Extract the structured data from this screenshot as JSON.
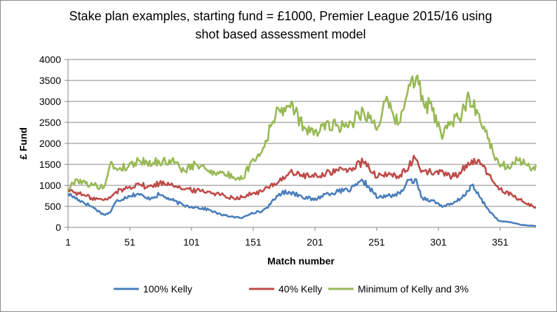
{
  "chart_data": {
    "type": "line",
    "title_line1": "Stake plan examples, starting fund = £1000, Premier League 2015/16 using",
    "title_line2": "shot based assessment model",
    "xlabel": "Match number",
    "ylabel": "£ Fund",
    "xlim": [
      1,
      380
    ],
    "ylim": [
      0,
      4000
    ],
    "x_ticks": [
      1,
      51,
      101,
      151,
      201,
      251,
      301,
      351
    ],
    "y_ticks": [
      0,
      500,
      1000,
      1500,
      2000,
      2500,
      3000,
      3500,
      4000
    ],
    "grid": "horizontal",
    "legend_position": "bottom",
    "series": [
      {
        "name": "100% Kelly",
        "color": "#4a7ebb",
        "points": [
          [
            1,
            800
          ],
          [
            10,
            650
          ],
          [
            20,
            500
          ],
          [
            30,
            300
          ],
          [
            35,
            350
          ],
          [
            40,
            620
          ],
          [
            50,
            750
          ],
          [
            58,
            800
          ],
          [
            65,
            680
          ],
          [
            75,
            780
          ],
          [
            85,
            650
          ],
          [
            95,
            520
          ],
          [
            105,
            480
          ],
          [
            115,
            420
          ],
          [
            125,
            300
          ],
          [
            135,
            250
          ],
          [
            142,
            220
          ],
          [
            150,
            350
          ],
          [
            158,
            380
          ],
          [
            165,
            550
          ],
          [
            172,
            800
          ],
          [
            180,
            850
          ],
          [
            190,
            750
          ],
          [
            200,
            650
          ],
          [
            210,
            800
          ],
          [
            220,
            850
          ],
          [
            230,
            900
          ],
          [
            240,
            1100
          ],
          [
            245,
            950
          ],
          [
            252,
            700
          ],
          [
            260,
            750
          ],
          [
            270,
            800
          ],
          [
            275,
            1050
          ],
          [
            282,
            1150
          ],
          [
            288,
            700
          ],
          [
            295,
            650
          ],
          [
            305,
            500
          ],
          [
            312,
            550
          ],
          [
            320,
            700
          ],
          [
            328,
            1000
          ],
          [
            335,
            700
          ],
          [
            342,
            400
          ],
          [
            350,
            150
          ],
          [
            360,
            120
          ],
          [
            368,
            60
          ],
          [
            380,
            30
          ]
        ]
      },
      {
        "name": "40% Kelly",
        "color": "#be4b48",
        "points": [
          [
            1,
            900
          ],
          [
            10,
            800
          ],
          [
            20,
            700
          ],
          [
            30,
            650
          ],
          [
            35,
            700
          ],
          [
            40,
            850
          ],
          [
            50,
            950
          ],
          [
            58,
            1050
          ],
          [
            65,
            950
          ],
          [
            75,
            1050
          ],
          [
            85,
            1050
          ],
          [
            95,
            900
          ],
          [
            105,
            880
          ],
          [
            115,
            850
          ],
          [
            125,
            780
          ],
          [
            135,
            700
          ],
          [
            142,
            720
          ],
          [
            150,
            800
          ],
          [
            158,
            850
          ],
          [
            165,
            1000
          ],
          [
            172,
            1100
          ],
          [
            180,
            1300
          ],
          [
            190,
            1250
          ],
          [
            200,
            1200
          ],
          [
            210,
            1300
          ],
          [
            220,
            1350
          ],
          [
            230,
            1400
          ],
          [
            240,
            1550
          ],
          [
            245,
            1400
          ],
          [
            252,
            1200
          ],
          [
            260,
            1250
          ],
          [
            270,
            1250
          ],
          [
            275,
            1350
          ],
          [
            282,
            1650
          ],
          [
            288,
            1350
          ],
          [
            295,
            1300
          ],
          [
            305,
            1300
          ],
          [
            312,
            1200
          ],
          [
            320,
            1350
          ],
          [
            328,
            1600
          ],
          [
            335,
            1500
          ],
          [
            342,
            1250
          ],
          [
            350,
            900
          ],
          [
            360,
            800
          ],
          [
            370,
            600
          ],
          [
            380,
            480
          ]
        ]
      },
      {
        "name": "Minimum of Kelly and 3%",
        "color": "#98b954",
        "points": [
          [
            1,
            900
          ],
          [
            8,
            1150
          ],
          [
            15,
            1050
          ],
          [
            22,
            1000
          ],
          [
            30,
            950
          ],
          [
            35,
            1500
          ],
          [
            40,
            1400
          ],
          [
            50,
            1450
          ],
          [
            58,
            1600
          ],
          [
            65,
            1550
          ],
          [
            75,
            1550
          ],
          [
            85,
            1600
          ],
          [
            95,
            1350
          ],
          [
            105,
            1500
          ],
          [
            115,
            1350
          ],
          [
            125,
            1300
          ],
          [
            135,
            1200
          ],
          [
            142,
            1150
          ],
          [
            150,
            1600
          ],
          [
            158,
            1800
          ],
          [
            165,
            2400
          ],
          [
            172,
            2800
          ],
          [
            178,
            2900
          ],
          [
            185,
            2750
          ],
          [
            192,
            2400
          ],
          [
            200,
            2200
          ],
          [
            210,
            2500
          ],
          [
            220,
            2400
          ],
          [
            230,
            2500
          ],
          [
            240,
            2800
          ],
          [
            245,
            2600
          ],
          [
            252,
            2400
          ],
          [
            258,
            3000
          ],
          [
            265,
            2600
          ],
          [
            270,
            2500
          ],
          [
            275,
            3100
          ],
          [
            280,
            3600
          ],
          [
            285,
            3400
          ],
          [
            290,
            2850
          ],
          [
            295,
            3000
          ],
          [
            300,
            2400
          ],
          [
            305,
            2200
          ],
          [
            312,
            2500
          ],
          [
            320,
            2700
          ],
          [
            326,
            3100
          ],
          [
            332,
            2800
          ],
          [
            338,
            2400
          ],
          [
            345,
            1800
          ],
          [
            352,
            1500
          ],
          [
            360,
            1450
          ],
          [
            365,
            1600
          ],
          [
            372,
            1500
          ],
          [
            376,
            1350
          ],
          [
            380,
            1500
          ]
        ]
      }
    ]
  }
}
